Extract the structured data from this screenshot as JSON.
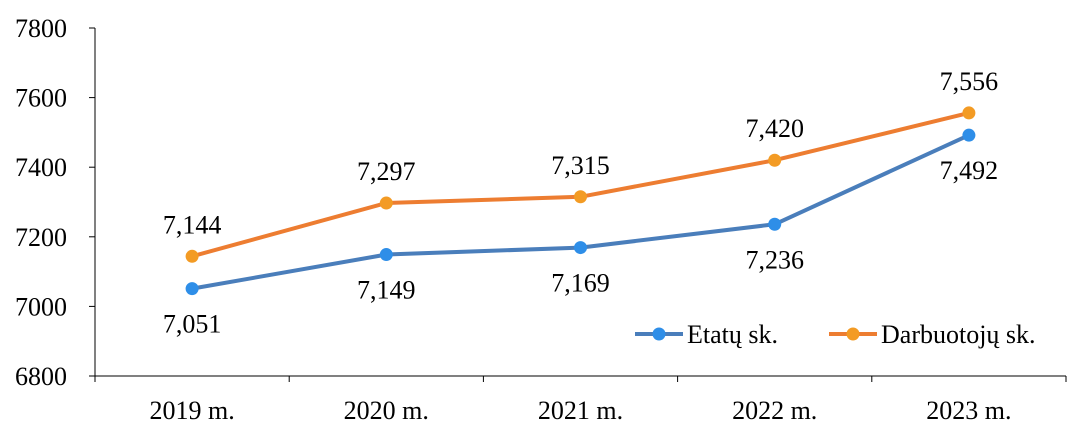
{
  "chart_data": {
    "type": "line",
    "categories": [
      "2019 m.",
      "2020 m.",
      "2021 m.",
      "2022 m.",
      "2023 m."
    ],
    "ylim": [
      6800,
      7800
    ],
    "yticks": [
      6800,
      7000,
      7200,
      7400,
      7600,
      7800
    ],
    "grid": false,
    "legend_position": "bottom-right",
    "series": [
      {
        "name": "Etatų sk.",
        "color": "#4a7ebb",
        "marker_color": "#2e8ee8",
        "values": [
          7051,
          7149,
          7169,
          7236,
          7492
        ],
        "data_labels": [
          "7,051",
          "7,149",
          "7,169",
          "7,236",
          "7,492"
        ],
        "label_position": "below"
      },
      {
        "name": "Darbuotojų sk.",
        "color": "#ed7d31",
        "marker_color": "#f39b24",
        "values": [
          7144,
          7297,
          7315,
          7420,
          7556
        ],
        "data_labels": [
          "7,144",
          "7,297",
          "7,315",
          "7,420",
          "7,556"
        ],
        "label_position": "above"
      }
    ]
  }
}
